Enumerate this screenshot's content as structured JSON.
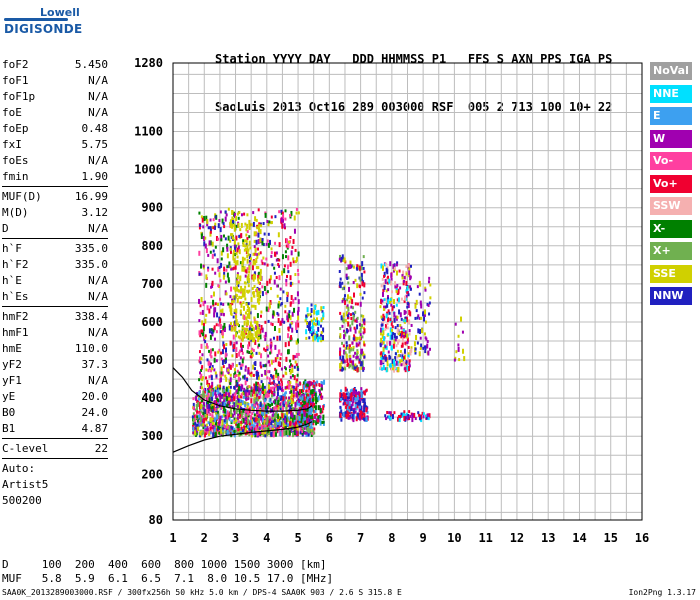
{
  "logo": {
    "top": "Lowell",
    "bottom": "DIGISONDE"
  },
  "header": {
    "line1": "Station YYYY DAY   DDD HHMMSS P1   FFS S AXN PPS IGA PS",
    "line2": "SaoLuis 2013 Oct16 289 003000 RSF  005 2 713 100 10+ 22"
  },
  "params": {
    "g1": [
      [
        "foF2",
        "5.450"
      ],
      [
        "foF1",
        "N/A"
      ],
      [
        "foF1p",
        "N/A"
      ],
      [
        "foE",
        "N/A"
      ],
      [
        "foEp",
        "0.48"
      ],
      [
        "fxI",
        "5.75"
      ],
      [
        "foEs",
        "N/A"
      ],
      [
        "fmin",
        "1.90"
      ]
    ],
    "g2": [
      [
        "MUF(D)",
        "16.99"
      ],
      [
        "M(D)",
        "3.12"
      ],
      [
        "D",
        "N/A"
      ]
    ],
    "g3": [
      [
        "h`F",
        "335.0"
      ],
      [
        "h`F2",
        "335.0"
      ],
      [
        "h`E",
        "N/A"
      ],
      [
        "h`Es",
        "N/A"
      ]
    ],
    "g4": [
      [
        "hmF2",
        "338.4"
      ],
      [
        "hmF1",
        "N/A"
      ],
      [
        "hmE",
        "110.0"
      ],
      [
        "yF2",
        "37.3"
      ],
      [
        "yF1",
        "N/A"
      ],
      [
        "yE",
        "20.0"
      ],
      [
        "B0",
        "24.0"
      ],
      [
        "B1",
        "4.87"
      ]
    ],
    "g5": [
      [
        "C-level",
        "22"
      ]
    ]
  },
  "auto": {
    "l1": "Auto:",
    "l2": "Artist5",
    "l3": "500200"
  },
  "footer": {
    "d_row": "D     100  200  400  600  800 1000 1500 3000 [km]",
    "muf_row": "MUF   5.8  5.9  6.1  6.5  7.1  8.0 10.5 17.0 [MHz]",
    "file_line": "SAA0K_2013289003000.RSF / 300fx256h 50 kHz 5.0 km / DPS-4 SAA0K 903 / 2.6 S 315.8 E",
    "version": "Ion2Png 1.3.17"
  },
  "legend": [
    {
      "label": "NoVal",
      "color": "#a0a0a0"
    },
    {
      "label": "NNE",
      "color": "#00e0ff"
    },
    {
      "label": "E",
      "color": "#3da0f0"
    },
    {
      "label": "W",
      "color": "#a000b0"
    },
    {
      "label": "Vo-",
      "color": "#ff3fa0"
    },
    {
      "label": "Vo+",
      "color": "#f00030"
    },
    {
      "label": "SSW",
      "color": "#f5b0b0"
    },
    {
      "label": "X-",
      "color": "#008000"
    },
    {
      "label": "X+",
      "color": "#70b050"
    },
    {
      "label": "SSE",
      "color": "#d0d000"
    },
    {
      "label": "NNW",
      "color": "#2020c0"
    }
  ],
  "chart_data": {
    "type": "scatter",
    "title": "",
    "xlabel": "",
    "ylabel": "",
    "xlim": [
      1,
      16
    ],
    "ylim": [
      80,
      1280
    ],
    "x_ticks": [
      1,
      2,
      3,
      4,
      5,
      6,
      7,
      8,
      9,
      10,
      11,
      12,
      13,
      14,
      15,
      16
    ],
    "y_ticks": [
      80,
      200,
      300,
      400,
      500,
      600,
      700,
      800,
      900,
      1000,
      1100,
      1280
    ],
    "grid": true,
    "traces": [
      {
        "f_min": 1.6,
        "f_max": 5.5,
        "h_min": 310,
        "h_max": 430,
        "n": 1400,
        "colors": [
          "#a000b0",
          "#f00030",
          "#ff3fa0",
          "#008000",
          "#3da0f0",
          "#d0d000",
          "#2020c0",
          "#70b050"
        ]
      },
      {
        "f_min": 1.8,
        "f_max": 5.0,
        "h_min": 430,
        "h_max": 900,
        "n": 900,
        "colors": [
          "#a000b0",
          "#f00030",
          "#ff3fa0",
          "#008000",
          "#2020c0",
          "#d0d000"
        ]
      },
      {
        "f_min": 2.8,
        "f_max": 3.8,
        "h_min": 560,
        "h_max": 900,
        "n": 220,
        "colors": [
          "#d0d000"
        ]
      },
      {
        "f_min": 5.0,
        "f_max": 5.8,
        "h_min": 340,
        "h_max": 450,
        "n": 220,
        "colors": [
          "#f00030",
          "#a000b0",
          "#008000",
          "#3da0f0"
        ]
      },
      {
        "f_min": 5.2,
        "f_max": 5.8,
        "h_min": 560,
        "h_max": 650,
        "n": 80,
        "colors": [
          "#00e0ff",
          "#2020c0",
          "#d0d000"
        ]
      },
      {
        "f_min": 6.3,
        "f_max": 7.2,
        "h_min": 350,
        "h_max": 430,
        "n": 200,
        "colors": [
          "#a000b0",
          "#f00030",
          "#2020c0",
          "#3da0f0"
        ]
      },
      {
        "f_min": 6.3,
        "f_max": 7.1,
        "h_min": 480,
        "h_max": 780,
        "n": 240,
        "colors": [
          "#d0d000",
          "#a000b0",
          "#f00030",
          "#2020c0",
          "#70b050"
        ]
      },
      {
        "f_min": 7.6,
        "f_max": 8.6,
        "h_min": 480,
        "h_max": 760,
        "n": 360,
        "colors": [
          "#a000b0",
          "#2020c0",
          "#d0d000",
          "#00e0ff",
          "#f5b0b0",
          "#f00030"
        ]
      },
      {
        "f_min": 7.7,
        "f_max": 9.2,
        "h_min": 350,
        "h_max": 370,
        "n": 60,
        "colors": [
          "#a000b0",
          "#f00030",
          "#2020c0",
          "#00e0ff"
        ]
      },
      {
        "f_min": 8.7,
        "f_max": 9.2,
        "h_min": 520,
        "h_max": 720,
        "n": 60,
        "colors": [
          "#a000b0",
          "#2020c0",
          "#d0d000"
        ]
      },
      {
        "f_min": 9.9,
        "f_max": 10.4,
        "h_min": 500,
        "h_max": 710,
        "n": 12,
        "colors": [
          "#a000b0",
          "#d0d000"
        ]
      }
    ],
    "profile_curve": [
      [
        1.0,
        258
      ],
      [
        1.5,
        275
      ],
      [
        2.0,
        290
      ],
      [
        2.5,
        300
      ],
      [
        3.0,
        305
      ],
      [
        3.5,
        310
      ],
      [
        4.0,
        314
      ],
      [
        4.5,
        318
      ],
      [
        5.0,
        324
      ],
      [
        5.3,
        332
      ],
      [
        5.45,
        338
      ]
    ],
    "virtual_height_curve": [
      [
        1.0,
        480
      ],
      [
        1.3,
        455
      ],
      [
        1.6,
        420
      ],
      [
        2.0,
        395
      ],
      [
        2.5,
        380
      ],
      [
        3.0,
        372
      ],
      [
        3.5,
        368
      ],
      [
        4.0,
        366
      ],
      [
        4.5,
        366
      ],
      [
        5.0,
        368
      ],
      [
        5.3,
        372
      ],
      [
        5.45,
        380
      ]
    ]
  }
}
